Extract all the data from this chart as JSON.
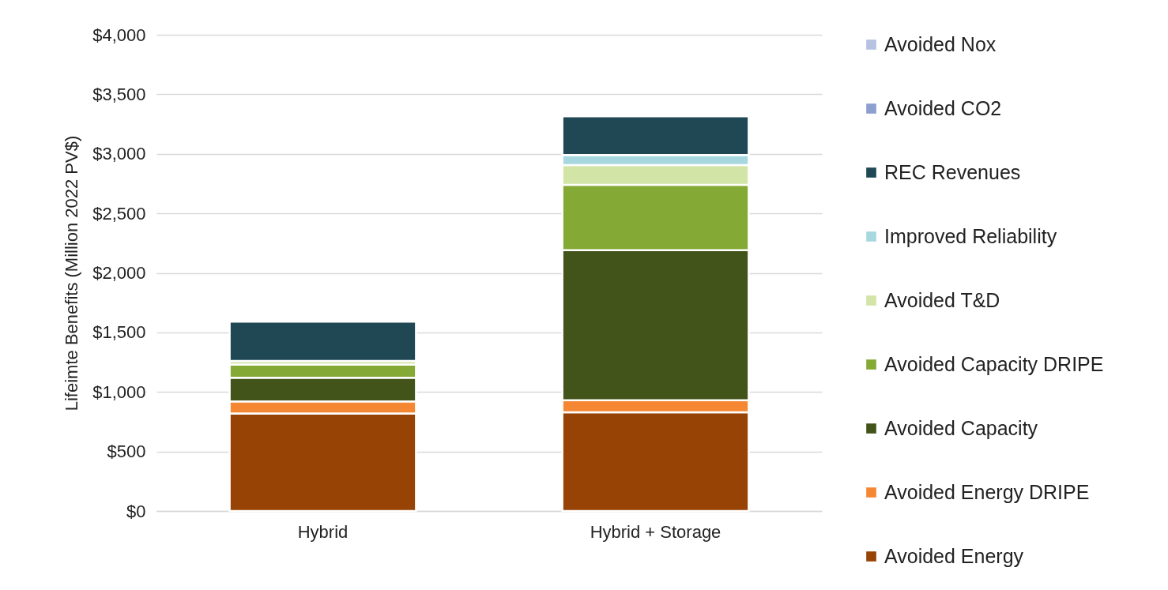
{
  "chart_data": {
    "type": "bar",
    "stacked": true,
    "ylabel": "Lifeimte Benefits (Million 2022 PV$)",
    "categories": [
      "Hybrid",
      "Hybrid + Storage"
    ],
    "series": [
      {
        "name": "Avoided Energy",
        "color": "#974306",
        "values": [
          820,
          830
        ]
      },
      {
        "name": "Avoided Energy DRIPE",
        "color": "#f58733",
        "values": [
          100,
          100
        ]
      },
      {
        "name": "Avoided Capacity",
        "color": "#43541a",
        "values": [
          200,
          1260
        ]
      },
      {
        "name": "Avoided Capacity DRIPE",
        "color": "#84a934",
        "values": [
          110,
          550
        ]
      },
      {
        "name": "Avoided T&D",
        "color": "#d2e4a6",
        "values": [
          30,
          165
        ]
      },
      {
        "name": "Improved Reliability",
        "color": "#a7d8e0",
        "values": [
          null,
          85
        ]
      },
      {
        "name": "REC Revenues",
        "color": "#1f4854",
        "values": [
          330,
          325
        ]
      },
      {
        "name": "Avoided CO2",
        "color": "#8c9fcf",
        "values": [
          null,
          null
        ]
      },
      {
        "name": "Avoided Nox",
        "color": "#b6c2e2",
        "values": [
          null,
          null
        ]
      }
    ],
    "ylim": [
      0,
      4000
    ],
    "yticks": [
      {
        "value": 0,
        "label": "$0"
      },
      {
        "value": 500,
        "label": "$500"
      },
      {
        "value": 1000,
        "label": "$1,000"
      },
      {
        "value": 1500,
        "label": "$1,500"
      },
      {
        "value": 2000,
        "label": "$2,000"
      },
      {
        "value": 2500,
        "label": "$2,500"
      },
      {
        "value": 3000,
        "label": "$3,000"
      },
      {
        "value": 3500,
        "label": "$3,500"
      },
      {
        "value": 4000,
        "label": "$4,000"
      }
    ],
    "grid": "y",
    "legend": "right"
  }
}
